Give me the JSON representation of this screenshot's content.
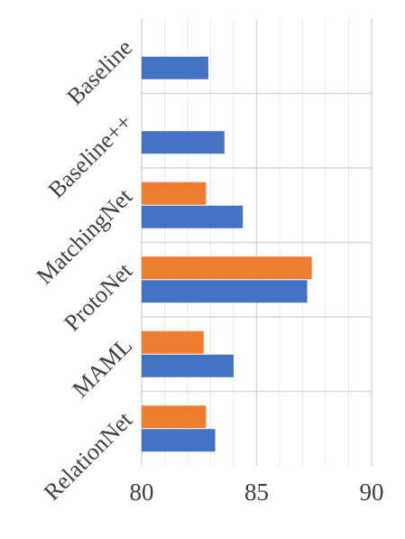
{
  "chart_data": {
    "type": "bar",
    "orientation": "horizontal",
    "categories": [
      "Baseline",
      "Baseline++",
      "MatchingNet",
      "ProtoNet",
      "MAML",
      "RelationNet"
    ],
    "series": [
      {
        "color": "#ED7D31",
        "values": [
          null,
          null,
          82.8,
          87.4,
          82.7,
          82.8
        ]
      },
      {
        "color": "#4472C4",
        "values": [
          82.9,
          83.6,
          84.4,
          87.2,
          84.0,
          83.2
        ]
      }
    ],
    "xlim": [
      80,
      90
    ],
    "xticks": [
      80,
      85,
      90
    ],
    "xtick_labels": [
      "80",
      "85",
      "90"
    ],
    "grid": {
      "major": "vertical",
      "minor": "vertical",
      "category_separators": true
    },
    "legend": "none"
  }
}
